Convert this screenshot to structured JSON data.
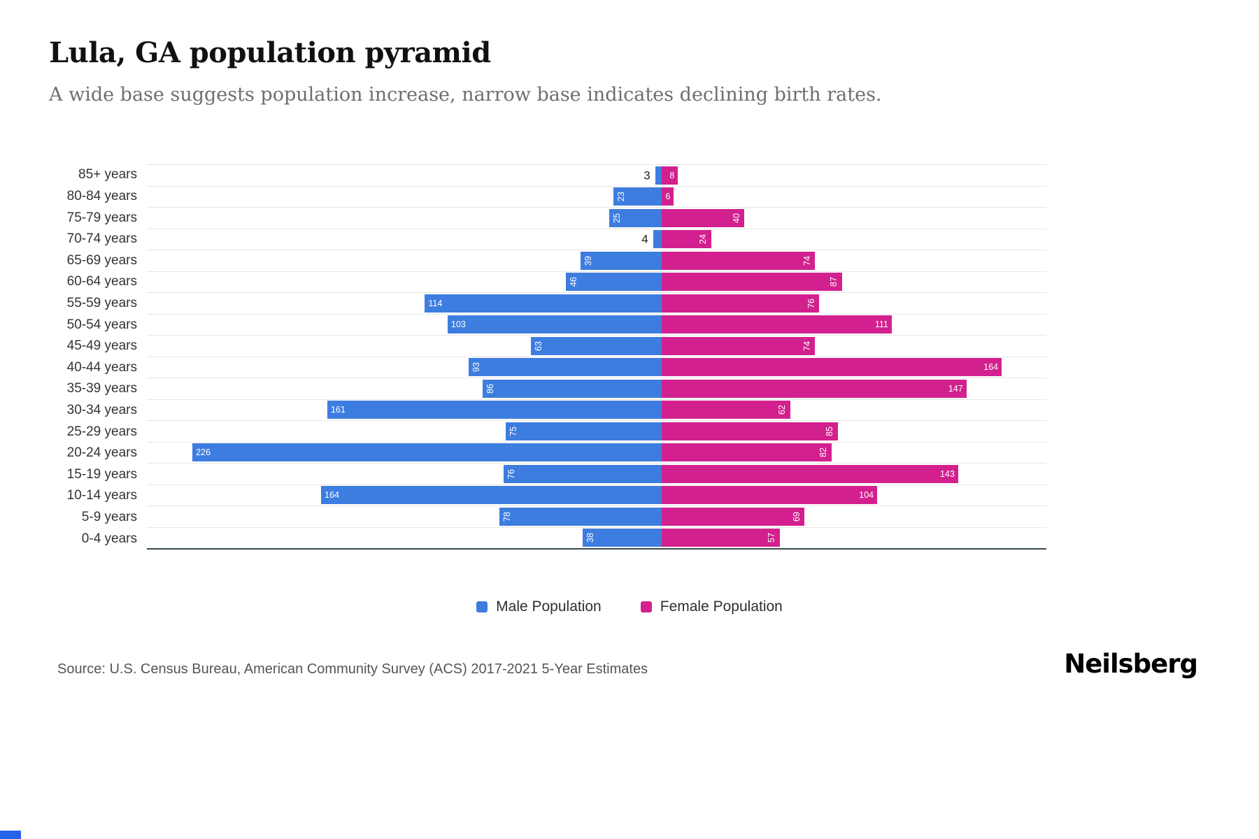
{
  "title": "Lula, GA population pyramid",
  "subtitle": "A wide base suggests population increase, narrow base indicates declining birth rates.",
  "chart_data": {
    "type": "bar",
    "variant": "population-pyramid",
    "categories": [
      "85+ years",
      "80-84 years",
      "75-79 years",
      "70-74 years",
      "65-69 years",
      "60-64 years",
      "55-59 years",
      "50-54 years",
      "45-49 years",
      "40-44 years",
      "35-39 years",
      "30-34 years",
      "25-29 years",
      "20-24 years",
      "15-19 years",
      "10-14 years",
      "5-9 years",
      "0-4 years"
    ],
    "series": [
      {
        "name": "Male Population",
        "side": "male",
        "color": "#3E7DE0",
        "values": [
          3,
          23,
          25,
          4,
          39,
          46,
          114,
          103,
          63,
          93,
          86,
          161,
          75,
          226,
          76,
          164,
          78,
          38
        ]
      },
      {
        "name": "Female Population",
        "side": "female",
        "color": "#D2218E",
        "values": [
          8,
          6,
          40,
          24,
          74,
          87,
          76,
          111,
          74,
          164,
          147,
          62,
          85,
          82,
          143,
          104,
          69,
          57
        ]
      }
    ],
    "layout": {
      "center_percent": 57.2,
      "unit_percent_per_person": 0.2307,
      "legend_position": "bottom",
      "grid": true,
      "grid_color": "#e6e6e6",
      "axis_line_color": "#37474f"
    }
  },
  "footer": {
    "source": "Source: U.S. Census Bureau, American Community Survey (ACS) 2017-2021 5-Year Estimates",
    "logo": "Neilsberg"
  },
  "corner_mark_color": "#2563eb"
}
